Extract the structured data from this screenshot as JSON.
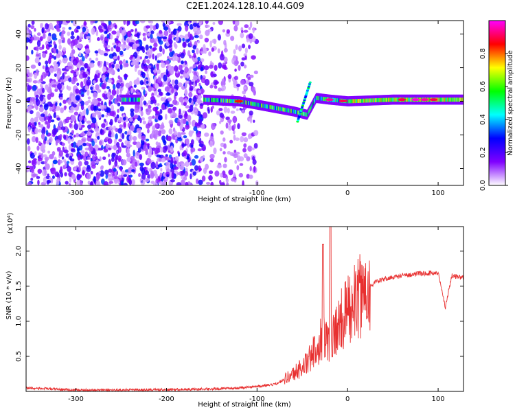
{
  "title": "C2E1.2024.128.10.44.G09",
  "chart_data": [
    {
      "type": "heatmap",
      "xlabel": "Height of straight line (km)",
      "ylabel": "Frequency (Hz)",
      "xlim": [
        -355,
        128
      ],
      "ylim": [
        -50,
        48
      ],
      "x_ticks": [
        -300,
        -200,
        -100,
        0,
        100
      ],
      "x_tick_labels": [
        "-300",
        "-200",
        "-100",
        "0",
        "100"
      ],
      "y_ticks": [
        -40,
        -20,
        0,
        20,
        40
      ],
      "y_tick_labels": [
        "-40",
        "-20",
        "0",
        "20",
        "40"
      ],
      "colorbar": {
        "label": "Normalized spectral amplitude",
        "range": [
          0,
          1
        ],
        "ticks": [
          0.0,
          0.2,
          0.4,
          0.6,
          0.8
        ],
        "tick_labels": [
          "0.0",
          "0.2",
          "0.4",
          "0.6",
          "0.8"
        ],
        "colors": [
          "#ffffff",
          "#8000ff",
          "#0000ff",
          "#00ffff",
          "#00ff00",
          "#ffff00",
          "#ff0000",
          "#ff00ff"
        ]
      },
      "ridge": [
        {
          "x": -250,
          "y": 1
        },
        {
          "x": -160,
          "y": 1
        },
        {
          "x": -120,
          "y": 0
        },
        {
          "x": -90,
          "y": -3
        },
        {
          "x": -60,
          "y": -6
        },
        {
          "x": -45,
          "y": -8
        },
        {
          "x": -35,
          "y": 2
        },
        {
          "x": -20,
          "y": 1
        },
        {
          "x": 0,
          "y": 0
        },
        {
          "x": 50,
          "y": 1
        },
        {
          "x": 100,
          "y": 1
        },
        {
          "x": 128,
          "y": 1
        }
      ]
    },
    {
      "type": "line",
      "xlabel": "Height of straight line (km)",
      "ylabel": "SNR (10 * v/v)",
      "y_multiplier": "(x10⁴)",
      "xlim": [
        -355,
        128
      ],
      "ylim": [
        0,
        23500
      ],
      "x_ticks": [
        -300,
        -200,
        -100,
        0,
        100
      ],
      "x_tick_labels": [
        "-300",
        "-200",
        "-100",
        "0",
        "100"
      ],
      "y_ticks": [
        5000,
        10000,
        15000,
        20000
      ],
      "y_tick_labels": [
        "0.5",
        "1.0",
        "1.5",
        "2.0"
      ],
      "color": "#e83030",
      "series": [
        {
          "x": [
            -355,
            -300,
            -250,
            -200,
            -150,
            -120,
            -100,
            -80,
            -60,
            -45,
            -35,
            -28,
            -20,
            -10,
            0,
            10,
            20,
            30,
            40,
            60,
            80,
            100,
            108,
            115,
            128
          ],
          "values": [
            500,
            200,
            200,
            250,
            350,
            500,
            700,
            1000,
            2500,
            4000,
            6000,
            8000,
            7000,
            9500,
            11500,
            13000,
            14500,
            15500,
            16000,
            16500,
            16800,
            16900,
            12000,
            16500,
            16200
          ]
        }
      ]
    }
  ]
}
